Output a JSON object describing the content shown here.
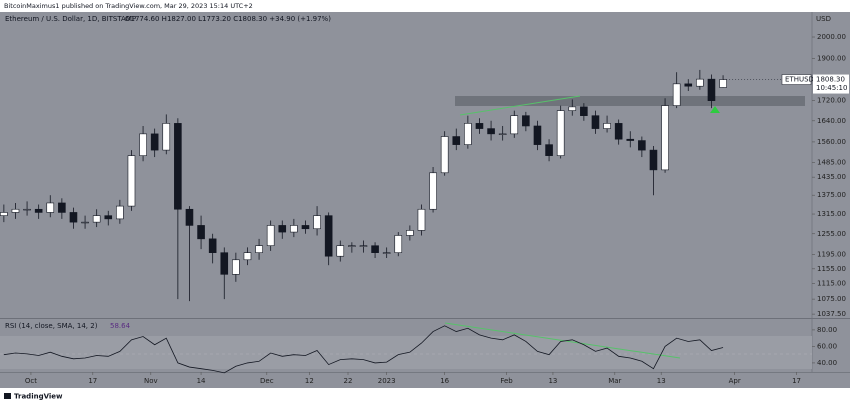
{
  "header": "BitcoinMaximus1 published on TradingView.com, Mar 29, 2023 15:14 UTC+2",
  "footer": "TradingView",
  "chart_data": [
    {
      "type": "candlestick",
      "title": "Ethereum / U.S. Dollar, 1D, BITSTAMP",
      "ohlc_text": "O1774.60 H1827.00 L1773.20 C1808.30 +34.90 (+1.97%)",
      "y_label": "USD",
      "symbol": "ETHUSD",
      "last_label": "1808.30",
      "countdown": "10:45:10",
      "log_scale": true,
      "xlim": [
        -1,
        209
      ],
      "ylim": [
        1028,
        2107
      ],
      "yticks": [
        {
          "value": 2000,
          "label": "2000.00"
        },
        {
          "value": 1900,
          "label": "1900.00"
        },
        {
          "value": 1720,
          "label": "1720.00"
        },
        {
          "value": 1640,
          "label": "1640.00"
        },
        {
          "value": 1560,
          "label": "1560.00"
        },
        {
          "value": 1485,
          "label": "1485.00"
        },
        {
          "value": 1435,
          "label": "1435.00"
        },
        {
          "value": 1375,
          "label": "1375.00"
        },
        {
          "value": 1315,
          "label": "1315.00"
        },
        {
          "value": 1255,
          "label": "1255.00"
        },
        {
          "value": 1195,
          "label": "1195.00"
        },
        {
          "value": 1155,
          "label": "1155.00"
        },
        {
          "value": 1115,
          "label": "1115.00"
        },
        {
          "value": 1075,
          "label": "1075.00"
        },
        {
          "value": 1037.5,
          "label": "1037.50"
        }
      ],
      "x": [
        0,
        3,
        6,
        9,
        12,
        15,
        18,
        21,
        24,
        27,
        30,
        33,
        36,
        39,
        42,
        45,
        48,
        51,
        54,
        57,
        60,
        63,
        66,
        69,
        72,
        75,
        78,
        81,
        84,
        87,
        90,
        93,
        96,
        99,
        102,
        105,
        108,
        111,
        114,
        117,
        120,
        123,
        126,
        129,
        132,
        135,
        138,
        141,
        144,
        147,
        150,
        153,
        156,
        159,
        162,
        165,
        168,
        171,
        174,
        177,
        180,
        183,
        186
      ],
      "open": [
        1310,
        1320,
        1330,
        1330,
        1320,
        1350,
        1320,
        1290,
        1290,
        1310,
        1300,
        1340,
        1510,
        1590,
        1530,
        1630,
        1330,
        1280,
        1240,
        1200,
        1140,
        1180,
        1200,
        1220,
        1280,
        1260,
        1280,
        1270,
        1310,
        1190,
        1220,
        1220,
        1220,
        1200,
        1200,
        1250,
        1265,
        1330,
        1450,
        1580,
        1550,
        1630,
        1610,
        1590,
        1590,
        1660,
        1620,
        1550,
        1510,
        1680,
        1695,
        1660,
        1610,
        1630,
        1570,
        1565,
        1530,
        1460,
        1700,
        1790,
        1780,
        1810,
        1774.6
      ],
      "high": [
        1345,
        1350,
        1355,
        1345,
        1375,
        1365,
        1335,
        1310,
        1330,
        1325,
        1360,
        1530,
        1620,
        1610,
        1665,
        1650,
        1340,
        1310,
        1255,
        1215,
        1200,
        1215,
        1240,
        1295,
        1295,
        1300,
        1295,
        1340,
        1320,
        1235,
        1230,
        1235,
        1230,
        1215,
        1260,
        1280,
        1345,
        1470,
        1600,
        1610,
        1660,
        1650,
        1640,
        1620,
        1680,
        1675,
        1640,
        1570,
        1700,
        1725,
        1710,
        1680,
        1660,
        1645,
        1600,
        1580,
        1545,
        1730,
        1840,
        1810,
        1850,
        1830,
        1827
      ],
      "low": [
        1290,
        1300,
        1310,
        1300,
        1305,
        1300,
        1270,
        1270,
        1275,
        1280,
        1285,
        1325,
        1490,
        1505,
        1515,
        1075,
        1070,
        1210,
        1170,
        1075,
        1120,
        1165,
        1180,
        1205,
        1240,
        1245,
        1255,
        1250,
        1165,
        1175,
        1200,
        1200,
        1185,
        1185,
        1190,
        1235,
        1250,
        1320,
        1440,
        1530,
        1535,
        1590,
        1565,
        1565,
        1575,
        1600,
        1530,
        1490,
        1500,
        1660,
        1640,
        1590,
        1595,
        1550,
        1540,
        1505,
        1375,
        1450,
        1690,
        1760,
        1765,
        1690,
        1773.2
      ],
      "close": [
        1320,
        1330,
        1330,
        1320,
        1350,
        1320,
        1290,
        1290,
        1310,
        1300,
        1340,
        1510,
        1590,
        1530,
        1630,
        1330,
        1280,
        1240,
        1200,
        1140,
        1180,
        1200,
        1220,
        1280,
        1260,
        1280,
        1270,
        1310,
        1190,
        1220,
        1220,
        1220,
        1200,
        1200,
        1250,
        1265,
        1330,
        1450,
        1580,
        1550,
        1630,
        1610,
        1590,
        1590,
        1660,
        1620,
        1550,
        1510,
        1680,
        1695,
        1660,
        1610,
        1630,
        1570,
        1565,
        1530,
        1460,
        1700,
        1790,
        1780,
        1810,
        1720,
        1808.3
      ]
    },
    {
      "type": "line",
      "title": "RSI (14, close, SMA, 14, 2)",
      "last_label": "58.64",
      "color": "#131722",
      "xlim": [
        -1,
        209
      ],
      "ylim": [
        29,
        92
      ],
      "yticks": [
        {
          "value": 80,
          "label": "80.00"
        },
        {
          "value": 60,
          "label": "60.00"
        },
        {
          "value": 40,
          "label": "40.00"
        }
      ],
      "xticks": [
        {
          "value": 7,
          "label": "Oct"
        },
        {
          "value": 23,
          "label": "17"
        },
        {
          "value": 38,
          "label": "Nov"
        },
        {
          "value": 51,
          "label": "14"
        },
        {
          "value": 68,
          "label": "Dec"
        },
        {
          "value": 79,
          "label": "12"
        },
        {
          "value": 89,
          "label": "22"
        },
        {
          "value": 99,
          "label": "2023"
        },
        {
          "value": 114,
          "label": "16"
        },
        {
          "value": 130,
          "label": "Feb"
        },
        {
          "value": 142,
          "label": "13"
        },
        {
          "value": 158,
          "label": "Mar"
        },
        {
          "value": 170,
          "label": "13"
        },
        {
          "value": 189,
          "label": "Apr"
        },
        {
          "value": 205,
          "label": "17"
        }
      ],
      "x": [
        0,
        3,
        6,
        9,
        12,
        15,
        18,
        21,
        24,
        27,
        30,
        33,
        36,
        39,
        42,
        45,
        48,
        51,
        54,
        57,
        60,
        63,
        66,
        69,
        72,
        75,
        78,
        81,
        84,
        87,
        90,
        93,
        96,
        99,
        102,
        105,
        108,
        111,
        114,
        117,
        120,
        123,
        126,
        129,
        132,
        135,
        138,
        141,
        144,
        147,
        150,
        153,
        156,
        159,
        162,
        165,
        168,
        171,
        174,
        177,
        180,
        183,
        186
      ],
      "values": [
        50,
        52,
        51,
        49,
        53,
        48,
        45,
        46,
        49,
        48,
        54,
        68,
        72,
        62,
        70,
        40,
        35,
        33,
        31,
        28,
        36,
        40,
        42,
        52,
        48,
        50,
        49,
        55,
        38,
        44,
        45,
        44,
        40,
        41,
        50,
        53,
        64,
        78,
        85,
        78,
        82,
        74,
        70,
        68,
        74,
        66,
        54,
        50,
        66,
        68,
        62,
        54,
        58,
        48,
        46,
        42,
        33,
        60,
        70,
        66,
        68,
        55,
        58.64
      ]
    }
  ]
}
